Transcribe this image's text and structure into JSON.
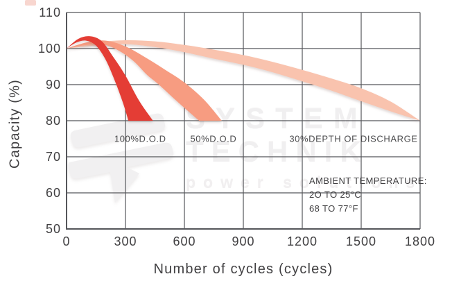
{
  "colors": {
    "red_100dod": "#e43d35",
    "salmon_50dod": "#f79c81",
    "pink_30dod": "#f9c3ae",
    "grid": "#55565a",
    "axis": "#4a4a4c",
    "text": "#414042",
    "watermark": "#f0eff0",
    "corner_artifact": "#f2b4a8"
  },
  "watermark": {
    "brand_line1": "SYSTEM",
    "brand_line2": "TECHNIK",
    "tagline": "power solutions"
  },
  "chart_data": {
    "type": "area",
    "title": "",
    "xlabel": "Number of cycles (cycles)",
    "ylabel": "Capacity (%)",
    "xlim": [
      0,
      1800
    ],
    "ylim": [
      50,
      110
    ],
    "x_ticks": [
      0,
      300,
      600,
      900,
      1200,
      1500,
      1800
    ],
    "y_ticks": [
      50,
      60,
      70,
      80,
      90,
      100,
      110
    ],
    "grid": true,
    "grid_color": "#55565a",
    "axis_color": "#4a4a4c",
    "legend_position": "inside-labels",
    "series": [
      {
        "name": "100%D.O.D",
        "color": "#e43d35",
        "label": {
          "x": 375,
          "y": 75
        },
        "upper": [
          [
            0,
            100
          ],
          [
            60,
            102.7
          ],
          [
            120,
            103.4
          ],
          [
            180,
            102
          ],
          [
            240,
            97.5
          ],
          [
            300,
            92.5
          ],
          [
            370,
            85.5
          ],
          [
            440,
            80
          ]
        ],
        "lower": [
          [
            0,
            100
          ],
          [
            50,
            101.7
          ],
          [
            100,
            102.2
          ],
          [
            150,
            100.8
          ],
          [
            200,
            96.8
          ],
          [
            250,
            90.5
          ],
          [
            290,
            84.5
          ],
          [
            315,
            80
          ]
        ]
      },
      {
        "name": "50%D.O.D",
        "color": "#f79c81",
        "label": {
          "x": 748,
          "y": 75
        },
        "upper": [
          [
            0,
            100
          ],
          [
            100,
            101.7
          ],
          [
            200,
            102.2
          ],
          [
            300,
            100.6
          ],
          [
            400,
            97.6
          ],
          [
            500,
            94.2
          ],
          [
            600,
            90.6
          ],
          [
            700,
            85.8
          ],
          [
            790,
            80
          ]
        ],
        "lower": [
          [
            0,
            100
          ],
          [
            90,
            100.9
          ],
          [
            180,
            101.2
          ],
          [
            260,
            99.6
          ],
          [
            340,
            96.6
          ],
          [
            410,
            92.7
          ],
          [
            470,
            90
          ],
          [
            570,
            85
          ],
          [
            675,
            80
          ]
        ]
      },
      {
        "name": "30%DEPTH OF DISCHARGE",
        "color": "#f9c3ae",
        "label": {
          "x": 1461,
          "y": 75
        },
        "upper": [
          [
            0,
            100
          ],
          [
            150,
            101.7
          ],
          [
            300,
            102.3
          ],
          [
            450,
            102
          ],
          [
            600,
            101
          ],
          [
            750,
            99.7
          ],
          [
            900,
            98.2
          ],
          [
            1050,
            96.3
          ],
          [
            1200,
            94.1
          ],
          [
            1350,
            91.7
          ],
          [
            1500,
            89
          ],
          [
            1650,
            85.3
          ],
          [
            1800,
            80
          ]
        ],
        "lower": [
          [
            0,
            100
          ],
          [
            140,
            100.8
          ],
          [
            300,
            101.2
          ],
          [
            450,
            100.4
          ],
          [
            600,
            99
          ],
          [
            750,
            97.2
          ],
          [
            900,
            95.5
          ],
          [
            1050,
            93.4
          ],
          [
            1200,
            90.9
          ],
          [
            1350,
            88.3
          ],
          [
            1500,
            85.4
          ],
          [
            1650,
            82.6
          ],
          [
            1800,
            80
          ]
        ]
      }
    ],
    "annotation": {
      "lines": [
        "AMBIENT TEMPERATURE:",
        "2O TO 25°C",
        "68 TO 77°F"
      ]
    }
  }
}
